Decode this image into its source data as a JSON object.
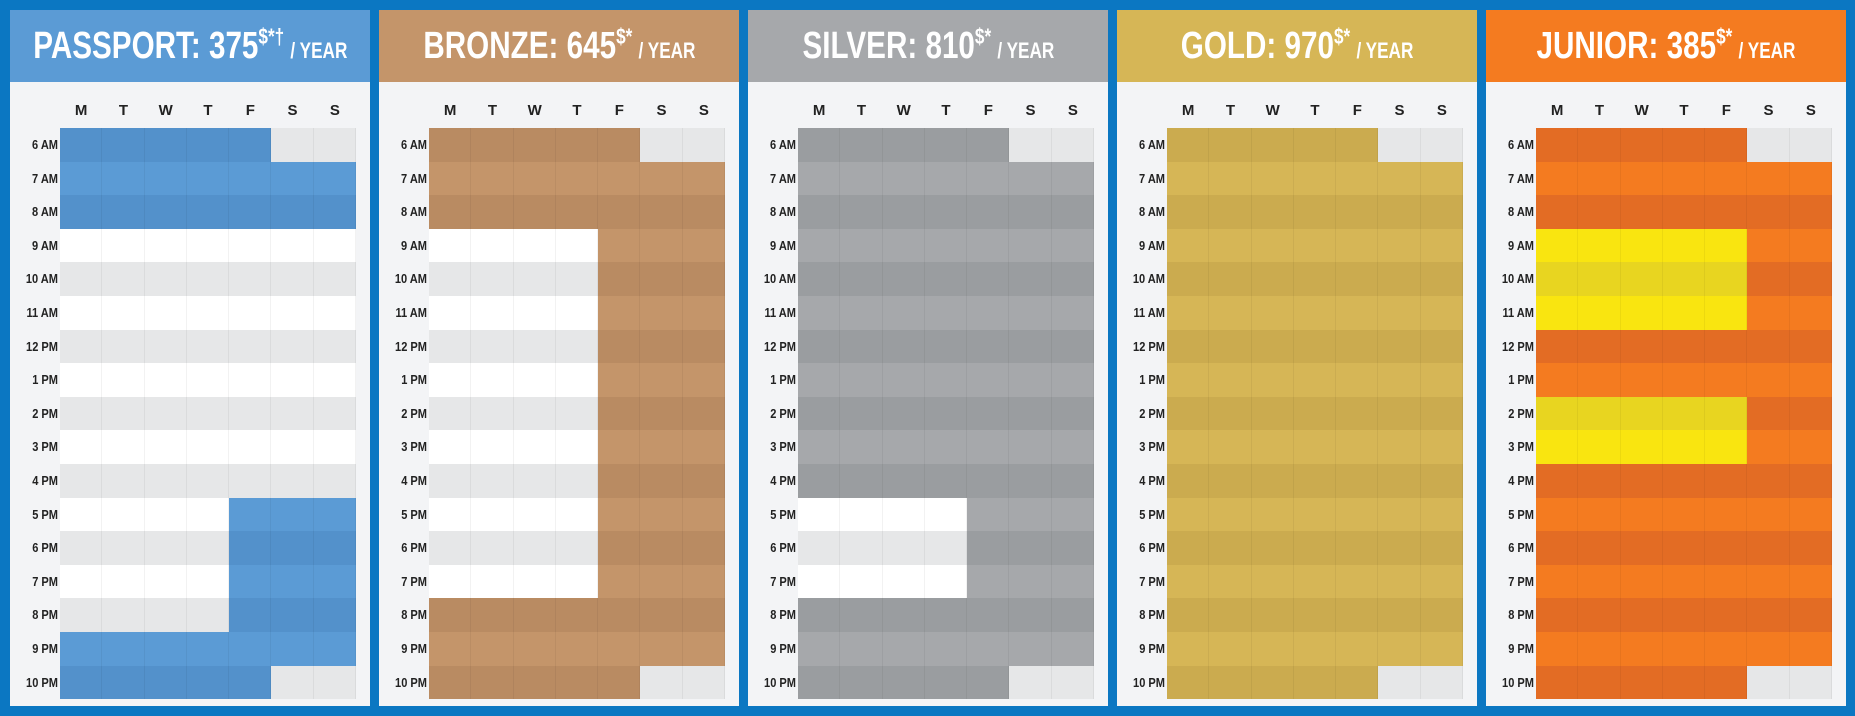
{
  "days": [
    "M",
    "T",
    "W",
    "T",
    "F",
    "S",
    "S"
  ],
  "hours": [
    "6 AM",
    "7 AM",
    "8 AM",
    "9 AM",
    "10 AM",
    "11 AM",
    "12 PM",
    "1 PM",
    "2 PM",
    "3 PM",
    "4 PM",
    "5 PM",
    "6 PM",
    "7 PM",
    "8 PM",
    "9 PM",
    "10 PM"
  ],
  "plans": [
    {
      "name": "PASSPORT: 375",
      "mark": "$*†",
      "period": "/ YEAR"
    },
    {
      "name": "BRONZE: 645",
      "mark": "$*",
      "period": "/ YEAR"
    },
    {
      "name": "SILVER: 810",
      "mark": "$*",
      "period": "/ YEAR"
    },
    {
      "name": "GOLD: 970",
      "mark": "$*",
      "period": "/ YEAR"
    },
    {
      "name": "JUNIOR: 385",
      "mark": "$*",
      "period": "/ YEAR"
    }
  ]
}
